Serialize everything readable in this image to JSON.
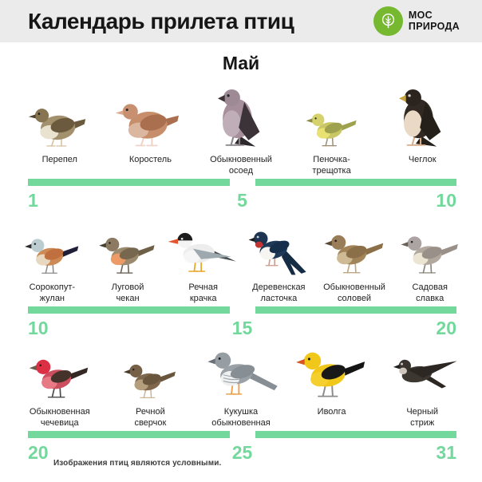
{
  "header": {
    "title": "Календарь прилета птиц",
    "logo": {
      "line1": "МОС",
      "line2": "ПРИРОДА",
      "icon": "tree-icon"
    }
  },
  "month": "Май",
  "footnote": "Изображения птиц являются условными.",
  "colors": {
    "accent_green": "#72d89c",
    "logo_green": "#76b82f",
    "header_bg": "#ebebeb",
    "text": "#1c1c1c"
  },
  "rows": [
    {
      "timeline": {
        "start": "1",
        "mid": "5",
        "end": "10"
      },
      "birds": [
        {
          "label": "Перепел",
          "icon": "quail-illustration",
          "pose": "plump",
          "size": 72,
          "colors": {
            "body": "#a3906c",
            "head": "#877552",
            "wing": "#6c5a3e",
            "breast": "#e9e2cf",
            "tail": "#6c5a3e",
            "beak": "#4f4430",
            "legs": "#d9c7a9",
            "eye": "#20201e"
          }
        },
        {
          "label": "Коростель",
          "icon": "corncrake-illustration",
          "pose": "plump",
          "size": 80,
          "colors": {
            "body": "#c68e6b",
            "head": "#c79071",
            "wing": "#a96f4e",
            "breast": "#dcb7a0",
            "tail": "#a96f4e",
            "beak": "#d9a98e",
            "legs": "#eed3c5",
            "eye": "#2a2520"
          }
        },
        {
          "label": "Обыкновенный\nосоед",
          "icon": "honey-buzzard-illustration",
          "pose": "upright",
          "size": 88,
          "colors": {
            "body": "#a68f9a",
            "head": "#9d8a94",
            "wing": "#3b3337",
            "breast": "#bfadb8",
            "tail": "#2e292c",
            "beak": "#3a3234",
            "legs": "#8d8489",
            "eye": "#2a2a2a"
          }
        },
        {
          "label": "Пеночка-\nтрещотка",
          "icon": "wood-warbler-illustration",
          "pose": "standing",
          "size": 60,
          "colors": {
            "body": "#c9c765",
            "head": "#d5d26b",
            "wing": "#9ea24f",
            "breast": "#e9e272",
            "tail": "#9ea24f",
            "beak": "#8b8b42",
            "legs": "#9b8a71",
            "eye": "#24241f"
          }
        },
        {
          "label": "Чеглок",
          "icon": "hobby-falcon-illustration",
          "pose": "upright",
          "size": 90,
          "colors": {
            "body": "#322a22",
            "head": "#2b241e",
            "wing": "#26201b",
            "breast": "#ead9c5",
            "tail": "#26201b",
            "beak": "#c8a43e",
            "legs": "#d9ad8c",
            "eye": "#d8d4cf"
          }
        }
      ]
    },
    {
      "timeline": {
        "start": "10",
        "mid": "15",
        "end": "20"
      },
      "birds": [
        {
          "label": "Сорокопут-\nжулан",
          "icon": "red-backed-shrike-illustration",
          "pose": "standing",
          "size": 64,
          "colors": {
            "body": "#cd8a54",
            "head": "#bccdd1",
            "wing": "#c0703e",
            "breast": "#e8d8c0",
            "tail": "#1f2038",
            "beak": "#2c2c2c",
            "legs": "#8c8c8c",
            "eye": "#20201e"
          }
        },
        {
          "label": "Луговой\nчекан",
          "icon": "whinchat-illustration",
          "pose": "standing",
          "size": 66,
          "colors": {
            "body": "#9b8a6d",
            "head": "#8c7b62",
            "wing": "#77674e",
            "breast": "#ec9b66",
            "tail": "#6e5f47",
            "beak": "#46402f",
            "legs": "#6e6457",
            "eye": "#20201e"
          }
        },
        {
          "label": "Речная\nкрачка",
          "icon": "common-tern-illustration",
          "pose": "tern",
          "size": 80,
          "colors": {
            "body": "#ededed",
            "head": "#f4f4f4",
            "cap": "#1d1d1d",
            "wing": "#9da8af",
            "breast": "#f6f6f6",
            "tail": "#4a4f54",
            "beak": "#e2552e",
            "legs": "#eaa62a",
            "eye": "#e8e8e8"
          }
        },
        {
          "label": "Деревенская\nласточка",
          "icon": "barn-swallow-illustration",
          "pose": "swallow",
          "size": 82,
          "colors": {
            "body": "#1e3a58",
            "head": "#1d3552",
            "wing": "#16304b",
            "breast": "#f7f5f1",
            "tail": "#152c45",
            "beak": "#1a1a1a",
            "legs": "#cfa193",
            "throat": "#c23531",
            "eye": "#cfd6dd"
          }
        },
        {
          "label": "Обыкновенный\nсоловей",
          "icon": "nightingale-illustration",
          "pose": "standing",
          "size": 70,
          "colors": {
            "body": "#a28459",
            "head": "#997d59",
            "wing": "#8a6f48",
            "breast": "#cfba96",
            "tail": "#8a6f48",
            "beak": "#5a4a34",
            "legs": "#bda887",
            "eye": "#26211b"
          }
        },
        {
          "label": "Садовая\nславка",
          "icon": "garden-warbler-illustration",
          "pose": "standing",
          "size": 68,
          "colors": {
            "body": "#b2a89d",
            "head": "#aba4a3",
            "wing": "#9a908a",
            "breast": "#ece5d3",
            "tail": "#9a908a",
            "beak": "#6a625a",
            "legs": "#8b8379",
            "eye": "#26241f"
          }
        }
      ]
    },
    {
      "timeline": {
        "start": "20",
        "mid": "25",
        "end": "31"
      },
      "birds": [
        {
          "label": "Обыкновенная\nчечевица",
          "icon": "common-rosefinch-illustration",
          "pose": "standing",
          "size": 70,
          "colors": {
            "body": "#cb4f5e",
            "head": "#dc3044",
            "wing": "#45322b",
            "breast": "#e87a85",
            "tail": "#332823",
            "beak": "#6b5b4a",
            "legs": "#4a4a4a",
            "eye": "#26201c"
          }
        },
        {
          "label": "Речной\nсверчок",
          "icon": "river-warbler-illustration",
          "pose": "standing",
          "size": 62,
          "colors": {
            "body": "#7e674c",
            "head": "#766047",
            "wing": "#6a553d",
            "breast": "#b59e7c",
            "tail": "#6a553d",
            "beak": "#4a3c2b",
            "legs": "#cdb59a",
            "eye": "#26201c"
          }
        },
        {
          "label": "Кукушка\nобыкновенная",
          "icon": "common-cuckoo-illustration",
          "pose": "longtail",
          "size": 78,
          "colors": {
            "body": "#9aa1a7",
            "head": "#969da3",
            "wing": "#878e94",
            "breast": "#eff0f0",
            "tail": "#878e94",
            "beak": "#6a7077",
            "legs": "#e8a24e",
            "bars": "#9aa1a7",
            "eye": "#22201e"
          }
        },
        {
          "label": "Иволга",
          "icon": "golden-oriole-illustration",
          "pose": "standing",
          "size": 82,
          "colors": {
            "body": "#f1c71a",
            "head": "#f1c71a",
            "wing": "#181818",
            "breast": "#f4cf2e",
            "tail": "#141414",
            "beak": "#d85420",
            "legs": "#8c8c8c",
            "eye": "#1a1a1a"
          }
        },
        {
          "label": "Черный\nстриж",
          "icon": "common-swift-illustration",
          "pose": "swift",
          "size": 76,
          "colors": {
            "body": "#3d3731",
            "head": "#3a342e",
            "wing": "#2c2723",
            "tail": "#2c2723",
            "beak": "#1e1e1e",
            "legs": "#3d3731",
            "throat": "#cfc7bc",
            "eye": "#cfc9c2"
          }
        }
      ]
    }
  ]
}
